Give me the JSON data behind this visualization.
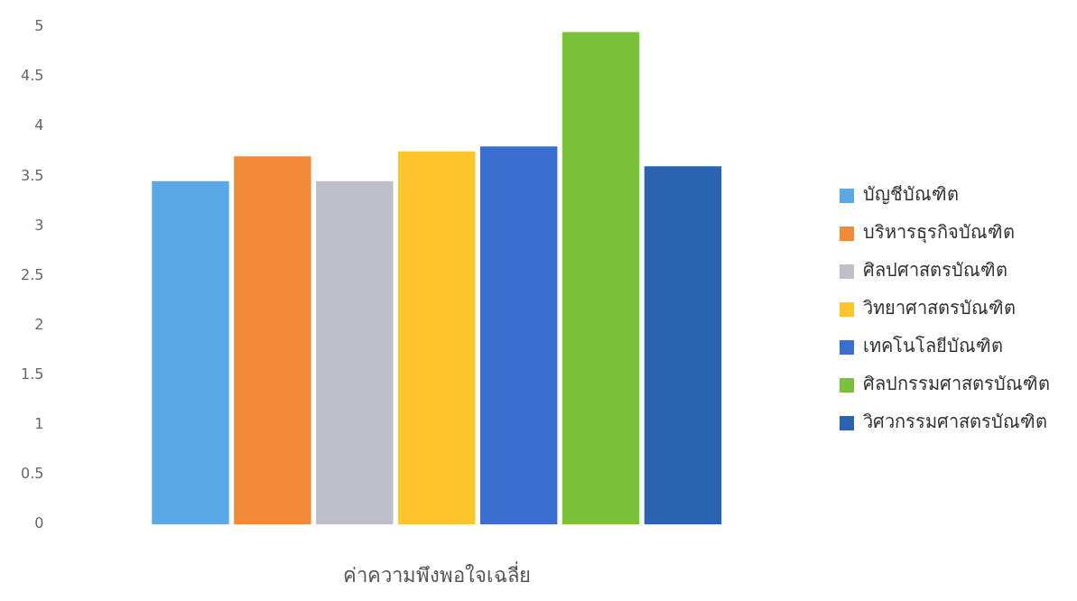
{
  "chart_data": {
    "type": "bar",
    "categories": [
      null
    ],
    "xlabel": "ค่าความพึงพอใจเฉลี่ย",
    "series": [
      {
        "name": "บัญชีบัณฑิต",
        "color": "#5aa9e6",
        "values": [
          3.45
        ]
      },
      {
        "name": "บริหารธุรกิจบัณฑิต",
        "color": "#f28a3c",
        "values": [
          3.7
        ]
      },
      {
        "name": "ศิลปศาสตรบัณฑิต",
        "color": "#bfbfc9",
        "values": [
          3.45
        ]
      },
      {
        "name": "วิทยาศาสตรบัณฑิต",
        "color": "#fcc52b",
        "values": [
          3.75
        ]
      },
      {
        "name": "เทคโนโลยีบัณฑิต",
        "color": "#3a6fd0",
        "values": [
          3.8
        ]
      },
      {
        "name": "ศิลปกรรมศาสตรบัณฑิต",
        "color": "#7cc13a",
        "values": [
          4.95
        ]
      },
      {
        "name": "วิศวกรรมศาสตรบัณฑิต",
        "color": "#2a63b0",
        "values": [
          3.6
        ]
      }
    ],
    "ylim": [
      0,
      5
    ],
    "yticks": [
      0,
      0.5,
      1,
      1.5,
      2,
      2.5,
      3,
      3.5,
      4,
      4.5,
      5
    ],
    "grid": false,
    "legend": "right"
  }
}
